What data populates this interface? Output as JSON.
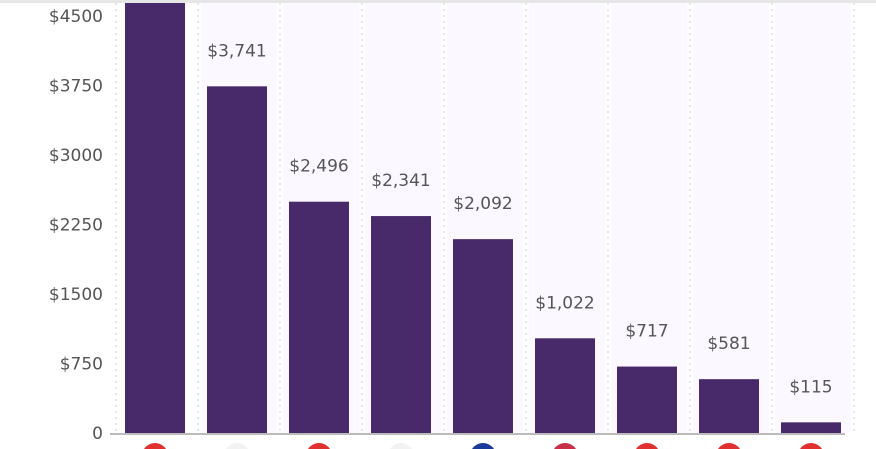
{
  "chart_data": {
    "type": "bar",
    "categories": [
      "",
      "",
      "",
      "",
      "",
      "",
      "",
      "",
      ""
    ],
    "values": [
      4700,
      3741,
      2496,
      2341,
      2092,
      1022,
      717,
      581,
      115
    ],
    "data_labels": [
      "",
      "$3,741",
      "$2,496",
      "$2,341",
      "$2,092",
      "$1,022",
      "$717",
      "$581",
      "$115"
    ],
    "yticks": [
      "0",
      "$750",
      "$1500",
      "$2250",
      "$3000",
      "$3750",
      "$4500"
    ],
    "ytick_values": [
      0,
      750,
      1500,
      2250,
      3000,
      3750,
      4500
    ],
    "ylim": [
      0,
      4680
    ],
    "title": "",
    "xlabel": "",
    "ylabel": "",
    "grid": "vertical dotted",
    "colors": {
      "bar": "#482a6b",
      "column_bg": "#fbf9ff",
      "grid": "#cccccc",
      "axis": "#bbbbbb"
    },
    "category_icons": [
      {
        "name": "flag-icon",
        "color": "#e03030"
      },
      {
        "name": "flag-icon",
        "color": "#f2f2f2"
      },
      {
        "name": "flag-icon",
        "color": "#e03030"
      },
      {
        "name": "flag-icon",
        "color": "#f2f2f2"
      },
      {
        "name": "flag-icon",
        "color": "#1a3a9a"
      },
      {
        "name": "flag-icon",
        "color": "#c8304a"
      },
      {
        "name": "flag-icon",
        "color": "#e03030"
      },
      {
        "name": "flag-icon",
        "color": "#e03030"
      },
      {
        "name": "flag-icon",
        "color": "#e03030"
      }
    ]
  }
}
